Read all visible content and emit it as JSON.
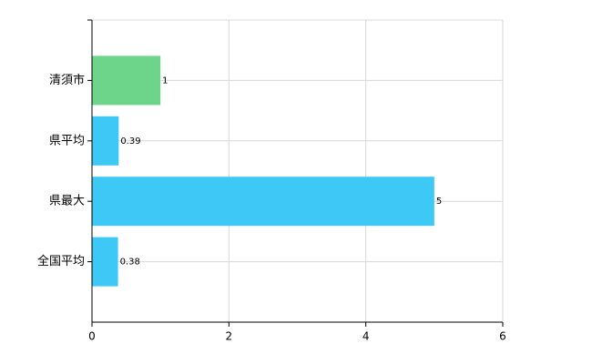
{
  "chart_data": {
    "type": "barh",
    "categories": [
      "清須市",
      "県平均",
      "県最大",
      "全国平均"
    ],
    "values": [
      1,
      0.39,
      5,
      0.38
    ],
    "colors": [
      "#6dd58a",
      "#3ec8f6",
      "#3ec8f6",
      "#3ec8f6"
    ],
    "xlim": [
      0,
      6
    ],
    "xticks": [
      0,
      2,
      4,
      6
    ],
    "grid": true
  }
}
